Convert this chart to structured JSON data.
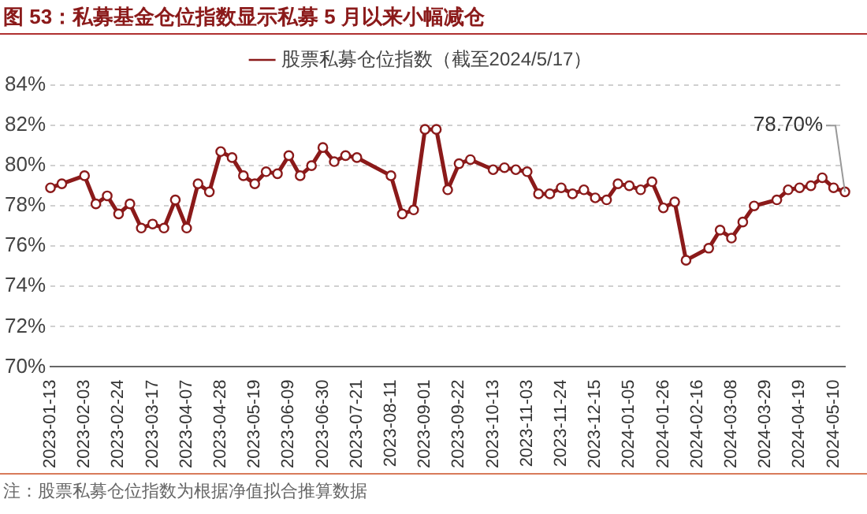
{
  "chart_data": {
    "type": "line",
    "title": "图 53：私募基金仓位指数显示私募 5 月以来小幅减仓",
    "x": [
      "2023-01-13",
      "2023-01-20",
      "2023-02-03",
      "2023-02-10",
      "2023-02-17",
      "2023-02-24",
      "2023-03-03",
      "2023-03-10",
      "2023-03-17",
      "2023-03-24",
      "2023-03-31",
      "2023-04-07",
      "2023-04-14",
      "2023-04-21",
      "2023-04-28",
      "2023-05-05",
      "2023-05-12",
      "2023-05-19",
      "2023-05-26",
      "2023-06-02",
      "2023-06-09",
      "2023-06-16",
      "2023-06-23",
      "2023-06-30",
      "2023-07-07",
      "2023-07-14",
      "2023-07-21",
      "2023-08-11",
      "2023-08-18",
      "2023-08-25",
      "2023-09-01",
      "2023-09-08",
      "2023-09-15",
      "2023-09-22",
      "2023-09-29",
      "2023-10-13",
      "2023-10-20",
      "2023-10-27",
      "2023-11-03",
      "2023-11-10",
      "2023-11-17",
      "2023-11-24",
      "2023-12-01",
      "2023-12-08",
      "2023-12-15",
      "2023-12-22",
      "2023-12-29",
      "2024-01-05",
      "2024-01-12",
      "2024-01-19",
      "2024-01-26",
      "2024-02-02",
      "2024-02-09",
      "2024-02-23",
      "2024-03-01",
      "2024-03-08",
      "2024-03-15",
      "2024-03-22",
      "2024-04-05",
      "2024-04-12",
      "2024-04-19",
      "2024-04-26",
      "2024-05-03",
      "2024-05-10",
      "2024-05-17"
    ],
    "series": [
      {
        "name": "股票私募仓位指数（截至2024/5/17）",
        "color": "#8b1a1a",
        "values": [
          78.9,
          79.1,
          79.5,
          78.1,
          78.5,
          77.6,
          78.1,
          76.9,
          77.1,
          76.9,
          78.3,
          76.9,
          79.1,
          78.7,
          80.7,
          80.4,
          79.5,
          79.1,
          79.7,
          79.6,
          80.5,
          79.5,
          80.0,
          80.9,
          80.2,
          80.5,
          80.4,
          79.5,
          77.6,
          77.8,
          81.8,
          81.8,
          78.8,
          80.1,
          80.3,
          79.8,
          79.9,
          79.8,
          79.7,
          78.6,
          78.6,
          78.9,
          78.6,
          78.8,
          78.4,
          78.3,
          79.1,
          79.0,
          78.8,
          79.2,
          77.9,
          78.2,
          75.3,
          75.9,
          76.8,
          76.4,
          77.2,
          78.0,
          78.3,
          78.8,
          78.9,
          79.0,
          79.4,
          78.9,
          78.7
        ]
      }
    ],
    "xlim": [
      "2023-01-13",
      "2024-05-17"
    ],
    "xticks": [
      "2023-01-13",
      "2023-02-03",
      "2023-02-24",
      "2023-03-17",
      "2023-04-07",
      "2023-04-28",
      "2023-05-19",
      "2023-06-09",
      "2023-06-30",
      "2023-07-21",
      "2023-08-11",
      "2023-09-01",
      "2023-09-22",
      "2023-10-13",
      "2023-11-03",
      "2023-11-24",
      "2023-12-15",
      "2024-01-05",
      "2024-01-26",
      "2024-02-16",
      "2024-03-08",
      "2024-03-29",
      "2024-04-19",
      "2024-05-10"
    ],
    "ylim": [
      70,
      84
    ],
    "yticks": [
      {
        "value": 70,
        "label": "70%"
      },
      {
        "value": 72,
        "label": "72%"
      },
      {
        "value": 74,
        "label": "74%"
      },
      {
        "value": 76,
        "label": "76%"
      },
      {
        "value": 78,
        "label": "78%"
      },
      {
        "value": 80,
        "label": "80%"
      },
      {
        "value": 82,
        "label": "82%"
      },
      {
        "value": 84,
        "label": "84%"
      }
    ],
    "grid": "y",
    "legend": "top",
    "marker": "circle",
    "line_style": "solid",
    "annotations": [
      {
        "text": "78.70%",
        "x": "2024-05-17",
        "y": 78.7
      },
      "注：股票私募仓位指数为根据净值拟合推算数据"
    ]
  }
}
